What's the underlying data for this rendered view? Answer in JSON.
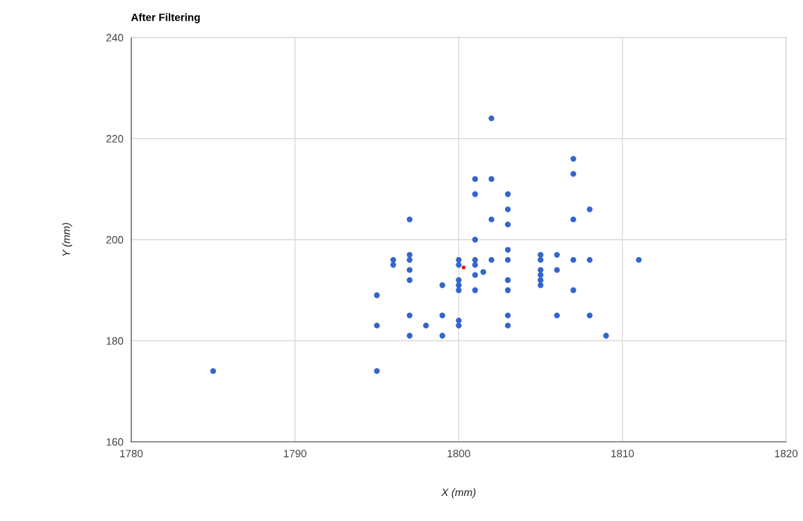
{
  "chart_data": {
    "type": "scatter",
    "title": "After Filtering",
    "xlabel": "X (mm)",
    "ylabel": "Y (mm)",
    "xlim": [
      1780,
      1820
    ],
    "xticks": [
      1780,
      1790,
      1800,
      1810,
      1820
    ],
    "ylim": [
      160,
      240
    ],
    "yticks": [
      160,
      180,
      200,
      220,
      240
    ],
    "grid": true,
    "marker": "circle",
    "series": [
      {
        "color": "#3366cc",
        "x": [
          1785,
          1795,
          1795,
          1795,
          1796,
          1796,
          1797,
          1797,
          1797,
          1797,
          1797,
          1797,
          1797,
          1798,
          1799,
          1799,
          1799,
          1800,
          1800,
          1800,
          1800,
          1800,
          1800,
          1800,
          1801,
          1801,
          1801,
          1801,
          1801,
          1801,
          1801,
          1801.5,
          1802,
          1802,
          1802,
          1802,
          1803,
          1803,
          1803,
          1803,
          1803,
          1803,
          1803,
          1803,
          1803,
          1805,
          1805,
          1805,
          1805,
          1805,
          1805,
          1806,
          1806,
          1806,
          1807,
          1807,
          1807,
          1807,
          1807,
          1808,
          1808,
          1808,
          1809,
          1811
        ],
        "values": [
          174,
          189,
          183,
          174,
          196,
          195,
          204,
          197,
          196,
          194,
          192,
          185,
          181,
          183,
          191,
          185,
          181,
          196,
          195,
          192,
          191,
          190,
          184,
          183,
          212,
          209,
          200,
          196,
          195,
          193,
          190,
          193.6,
          224,
          212,
          204,
          196,
          209,
          206,
          203,
          198,
          196,
          192,
          190,
          185,
          183,
          197,
          196,
          194,
          193,
          192,
          191,
          197,
          194,
          185,
          216,
          213,
          204,
          196,
          190,
          206,
          196,
          185,
          181,
          196
        ]
      },
      {
        "color": "#ff0000",
        "x": [
          1800.3
        ],
        "values": [
          194.5
        ]
      }
    ]
  }
}
